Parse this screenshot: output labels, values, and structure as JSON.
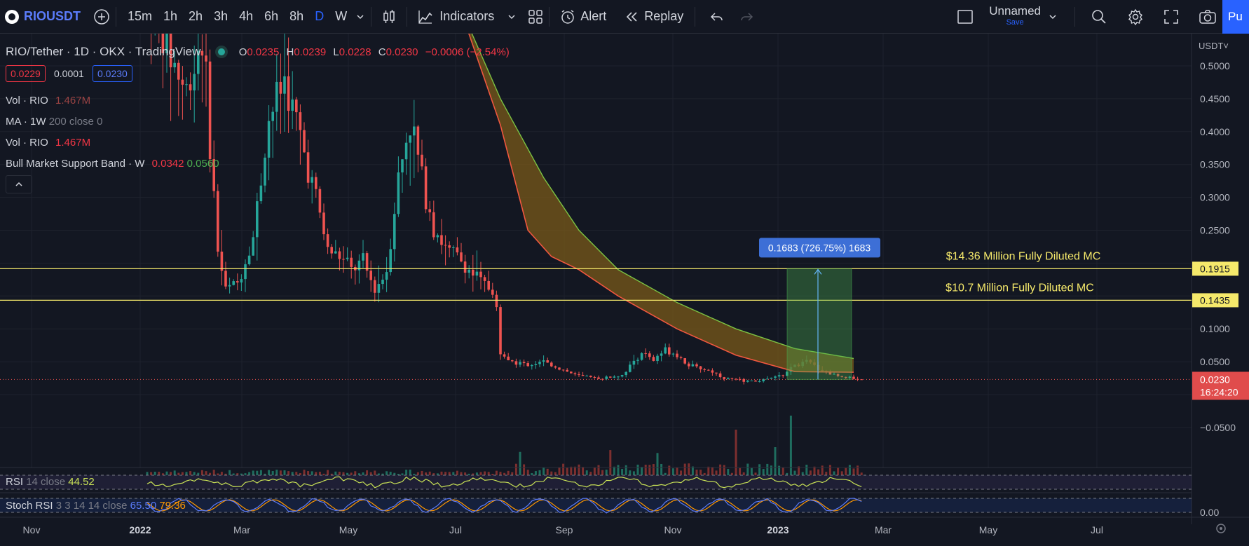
{
  "toolbar": {
    "symbol": "RIOUSDT",
    "intervals": [
      "15m",
      "1h",
      "2h",
      "3h",
      "4h",
      "6h",
      "8h",
      "D",
      "W"
    ],
    "active_interval": "D",
    "indicators_label": "Indicators",
    "alert_label": "Alert",
    "replay_label": "Replay",
    "layout_name": "Unnamed",
    "save_label": "Save",
    "publish_label": "Pu"
  },
  "legend": {
    "title": "RIO/Tether · 1D · OKX · TradingView",
    "o_label": "O",
    "o_value": "0.0235",
    "h_label": "H",
    "h_value": "0.0239",
    "l_label": "L",
    "l_value": "0.0228",
    "c_label": "C",
    "c_value": "0.0230",
    "change": "−0.0006 (−2.54%)",
    "bid": "0.0229",
    "spread": "0.0001",
    "ask": "0.0230",
    "vol1_label": "Vol · RIO",
    "vol1_value": "1.467M",
    "ma_label": "MA · 1W",
    "ma_params": "200 close 0",
    "vol2_label": "Vol · RIO",
    "vol2_value": "1.467M",
    "bmsb_label": "Bull Market Support Band · W",
    "bmsb_v1": "0.0342",
    "bmsb_v2": "0.0560",
    "rsi_label": "RSI",
    "rsi_params": "14 close",
    "rsi_value": "44.52",
    "stoch_label": "Stoch RSI",
    "stoch_params": "3 3 14 14 close",
    "stoch_k": "65.50",
    "stoch_d": "79.36"
  },
  "colors": {
    "background": "#131722",
    "up": "#26a69a",
    "down": "#ef5350",
    "band_fill": "#7a5a1a",
    "band_upper": "#7cc243",
    "band_lower": "#f0573f",
    "hline": "#f5e96b",
    "accent": "#2962ff"
  },
  "chart_data": {
    "type": "candlestick",
    "currency": "USDT",
    "price_ticks": [
      "0.5000",
      "0.4500",
      "0.4000",
      "0.3500",
      "0.3000",
      "0.2500",
      "0.1000",
      "0.0500",
      "−0.0500",
      "0.00"
    ],
    "x_ticks": [
      "Nov",
      "2022",
      "Mar",
      "May",
      "Jul",
      "Sep",
      "Nov",
      "2023",
      "Mar",
      "May",
      "Jul"
    ],
    "last_price": "0.0230",
    "countdown": "16:24:20",
    "horizontal_lines": [
      {
        "value": 0.1915,
        "label": "0.1915",
        "annotation": "$14.36 Million Fully Diluted MC"
      },
      {
        "value": 0.1435,
        "label": "0.1435",
        "annotation": "$10.7 Million Fully Diluted MC"
      }
    ],
    "measure": {
      "from": 0.023,
      "to": 0.1915,
      "label": "0.1683 (726.75%) 1683"
    },
    "price_path": [
      [
        0,
        0.6
      ],
      [
        5,
        0.53
      ],
      [
        10,
        0.46
      ],
      [
        14,
        0.55
      ],
      [
        18,
        0.22
      ],
      [
        20,
        0.16
      ],
      [
        23,
        0.17
      ],
      [
        27,
        0.24
      ],
      [
        31,
        0.42
      ],
      [
        35,
        0.48
      ],
      [
        39,
        0.39
      ],
      [
        43,
        0.3
      ],
      [
        46,
        0.22
      ],
      [
        49,
        0.21
      ],
      [
        52,
        0.19
      ],
      [
        55,
        0.2
      ],
      [
        58,
        0.16
      ],
      [
        61,
        0.19
      ],
      [
        64,
        0.33
      ],
      [
        67,
        0.42
      ],
      [
        70,
        0.33
      ],
      [
        73,
        0.26
      ],
      [
        76,
        0.22
      ],
      [
        79,
        0.21
      ],
      [
        82,
        0.19
      ],
      [
        85,
        0.17
      ],
      [
        88,
        0.16
      ],
      [
        89,
        0.13
      ],
      [
        90,
        0.06
      ],
      [
        93,
        0.05
      ],
      [
        97,
        0.045
      ],
      [
        101,
        0.05
      ],
      [
        105,
        0.04
      ],
      [
        109,
        0.03
      ],
      [
        113,
        0.025
      ],
      [
        117,
        0.026
      ],
      [
        121,
        0.03
      ],
      [
        124,
        0.05
      ],
      [
        126,
        0.065
      ],
      [
        129,
        0.05
      ],
      [
        132,
        0.07
      ],
      [
        135,
        0.06
      ],
      [
        138,
        0.045
      ],
      [
        141,
        0.04
      ],
      [
        144,
        0.035
      ],
      [
        147,
        0.025
      ],
      [
        151,
        0.022
      ],
      [
        155,
        0.02
      ],
      [
        159,
        0.025
      ],
      [
        162,
        0.03
      ],
      [
        165,
        0.045
      ],
      [
        168,
        0.05
      ],
      [
        171,
        0.04
      ],
      [
        174,
        0.032
      ],
      [
        177,
        0.028
      ],
      [
        180,
        0.025
      ],
      [
        182,
        0.023
      ]
    ],
    "band_upper_path": [
      [
        79,
        0.6
      ],
      [
        90,
        0.45
      ],
      [
        101,
        0.33
      ],
      [
        110,
        0.25
      ],
      [
        120,
        0.19
      ],
      [
        135,
        0.14
      ],
      [
        150,
        0.1
      ],
      [
        165,
        0.07
      ],
      [
        180,
        0.055
      ]
    ],
    "band_lower_path": [
      [
        79,
        0.6
      ],
      [
        90,
        0.41
      ],
      [
        97,
        0.25
      ],
      [
        103,
        0.21
      ],
      [
        110,
        0.19
      ],
      [
        120,
        0.15
      ],
      [
        135,
        0.1
      ],
      [
        150,
        0.06
      ],
      [
        165,
        0.035
      ],
      [
        180,
        0.034
      ]
    ]
  }
}
